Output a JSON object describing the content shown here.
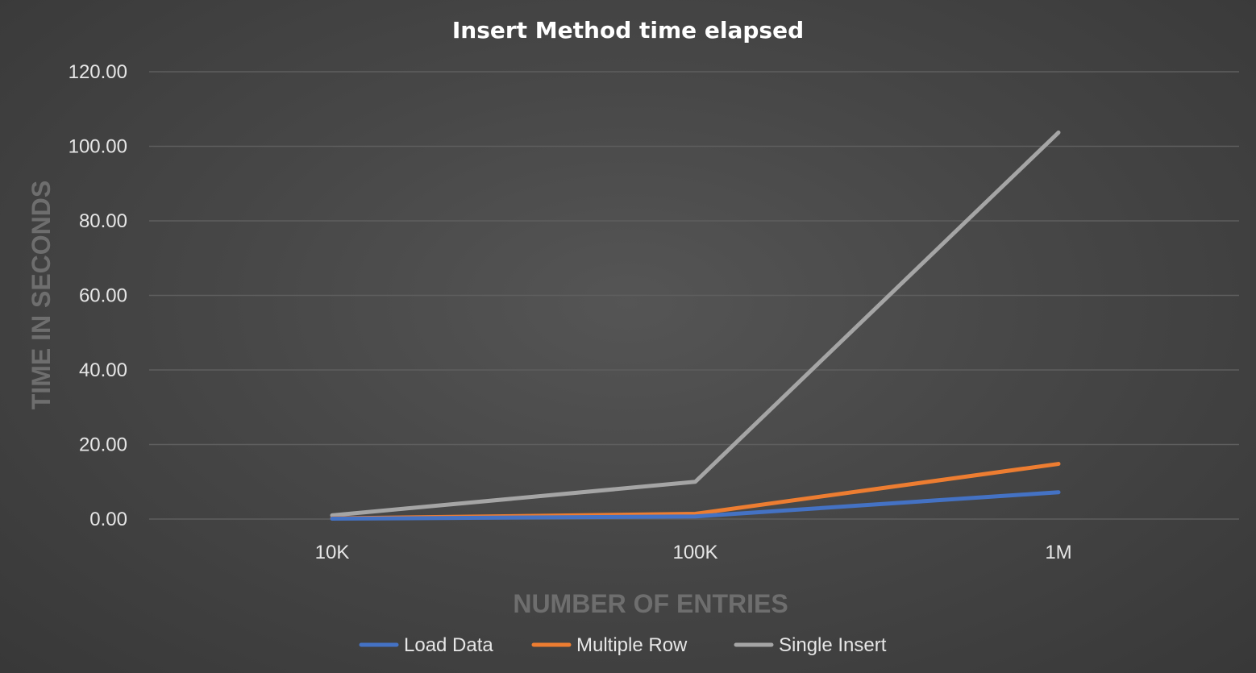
{
  "chart_data": {
    "type": "line",
    "title": "Insert Method time elapsed",
    "xlabel": "NUMBER OF ENTRIES",
    "ylabel": "TIME IN SECONDS",
    "categories": [
      "10K",
      "100K",
      "1M"
    ],
    "ylim": [
      0,
      120
    ],
    "y_ticks": [
      "0.00",
      "20.00",
      "40.00",
      "60.00",
      "80.00",
      "100.00",
      "120.00"
    ],
    "grid": true,
    "legend_position": "bottom",
    "series": [
      {
        "name": "Load Data",
        "color": "#4472c4",
        "values": [
          0.1,
          0.7,
          7.2
        ]
      },
      {
        "name": "Multiple Row",
        "color": "#ed7d31",
        "values": [
          0.2,
          1.4,
          14.8
        ]
      },
      {
        "name": "Single Insert",
        "color": "#a5a5a5",
        "values": [
          1.0,
          10.0,
          103.7
        ]
      }
    ]
  }
}
